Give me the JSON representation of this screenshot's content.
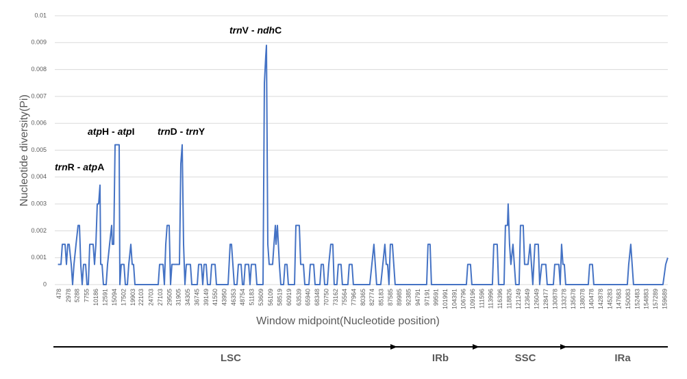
{
  "chart_data": {
    "type": "line",
    "color": "#4472c4",
    "grid": true,
    "ylabel": "Nucleotide diversity(Pi)",
    "xlabel": "Window midpoint(Nucleotide position)",
    "ylim": [
      0,
      0.01
    ],
    "yticks": [
      0,
      0.001,
      0.002,
      0.003,
      0.004,
      0.005,
      0.006,
      0.007,
      0.008,
      0.009,
      0.01
    ],
    "xlim": [
      -720,
      160400
    ],
    "xticks": [
      478,
      2978,
      5288,
      7755,
      10186,
      12591,
      15094,
      17502,
      19903,
      22103,
      24703,
      27103,
      29505,
      31905,
      34305,
      36745,
      39149,
      41550,
      43950,
      46353,
      48754,
      51183,
      53609,
      56109,
      58519,
      60919,
      63539,
      65940,
      68348,
      70750,
      73162,
      75564,
      77964,
      80365,
      82774,
      85183,
      87585,
      89985,
      92385,
      94791,
      97191,
      99591,
      101991,
      104391,
      106796,
      109196,
      111596,
      113996,
      116396,
      118826,
      121249,
      123649,
      126049,
      128477,
      130878,
      133278,
      135678,
      138078,
      140478,
      142878,
      145283,
      147683,
      150083,
      152483,
      154883,
      157289,
      159689
    ],
    "x": [
      100,
      900,
      1260,
      1980,
      2340,
      2700,
      3060,
      3600,
      3960,
      4320,
      4860,
      5400,
      5760,
      6120,
      6480,
      6840,
      7380,
      7740,
      8100,
      8460,
      9360,
      9720,
      10080,
      10440,
      10800,
      11160,
      11340,
      11700,
      12060,
      12780,
      13140,
      13680,
      14220,
      14400,
      14760,
      15120,
      16200,
      16380,
      16740,
      17460,
      17820,
      18360,
      18720,
      19260,
      19620,
      19980,
      20340,
      26460,
      26820,
      27720,
      28080,
      28440,
      28800,
      29340,
      29700,
      30060,
      32040,
      32400,
      32760,
      33120,
      33480,
      33840,
      34920,
      35280,
      36720,
      37080,
      37800,
      38160,
      38520,
      39060,
      39420,
      40140,
      40500,
      41400,
      41760,
      44820,
      45360,
      45720,
      46080,
      46440,
      47160,
      47520,
      48240,
      48600,
      48960,
      49320,
      50220,
      50580,
      50940,
      52020,
      52380,
      54000,
      54360,
      54720,
      54900,
      55260,
      55620,
      56520,
      56880,
      57240,
      57420,
      57780,
      58320,
      58680,
      59400,
      59760,
      60300,
      60660,
      62280,
      62640,
      63540,
      63900,
      64620,
      64980,
      66060,
      66420,
      67320,
      67680,
      68940,
      69300,
      69840,
      70200,
      70920,
      71280,
      71820,
      72360,
      72720,
      73440,
      73800,
      74520,
      74880,
      76320,
      76680,
      77400,
      77760,
      82080,
      82620,
      83160,
      83520,
      83880,
      84960,
      85500,
      86040,
      86400,
      86760,
      87120,
      87480,
      88020,
      88380,
      88740,
      97020,
      97380,
      97920,
      98280,
      107460,
      107820,
      108540,
      108900,
      114300,
      114660,
      115560,
      115920,
      117360,
      117720,
      118260,
      118440,
      118800,
      119160,
      119700,
      120060,
      120420,
      121320,
      121680,
      122400,
      122760,
      123660,
      124200,
      124560,
      124920,
      125460,
      126360,
      126720,
      127260,
      128340,
      128700,
      130320,
      130680,
      131400,
      131760,
      132120,
      132480,
      132840,
      133200,
      133560,
      139500,
      139860,
      140580,
      140940,
      149760,
      150120,
      150660,
      151020,
      151380,
      159120,
      159840,
      160380
    ],
    "values": [
      0.00075,
      0.00075,
      0.0015,
      0.0015,
      0.00075,
      0.0015,
      0.0015,
      0.00075,
      0,
      0.00075,
      0.0015,
      0.0022,
      0.0022,
      0.0007,
      0,
      0.00075,
      0.00075,
      0,
      0,
      0.0015,
      0.0015,
      0.00075,
      0.0015,
      0.003,
      0.003,
      0.0037,
      0.00075,
      0.00075,
      0,
      0,
      0.00075,
      0.0015,
      0.0022,
      0.0015,
      0.0015,
      0.0052,
      0.0052,
      0,
      0.00075,
      0.00075,
      0,
      0,
      0.00075,
      0.0015,
      0.00075,
      0.00075,
      0,
      0,
      0.00075,
      0.00075,
      0,
      0.0015,
      0.0022,
      0.0022,
      0,
      0.00075,
      0.00075,
      0.0045,
      0.0052,
      0.0015,
      0,
      0.00075,
      0.00075,
      0,
      0,
      0.00075,
      0.00075,
      0,
      0.00075,
      0.00075,
      0,
      0,
      0.00075,
      0.00075,
      0,
      0,
      0.0015,
      0.0015,
      0.00075,
      0,
      0,
      0.00075,
      0.00075,
      0,
      0,
      0.00075,
      0.00075,
      0,
      0.00075,
      0.00075,
      0,
      0,
      0.0075,
      0.0085,
      0.0089,
      0.0015,
      0.00075,
      0.00075,
      0.0015,
      0.0022,
      0.0015,
      0.0022,
      0.0007,
      0,
      0,
      0.00075,
      0.00075,
      0,
      0,
      0.0022,
      0.0022,
      0.00075,
      0.00075,
      0,
      0,
      0.00075,
      0.00075,
      0,
      0,
      0.00075,
      0.00075,
      0,
      0,
      0.00075,
      0.0015,
      0.0015,
      0,
      0,
      0.00075,
      0.00075,
      0,
      0,
      0.00075,
      0.00075,
      0,
      0,
      0.00075,
      0.0015,
      0.00075,
      0,
      0,
      0.00075,
      0.0015,
      0.00075,
      0.00075,
      0,
      0.0015,
      0.0015,
      0.00075,
      0,
      0,
      0.0015,
      0.0015,
      0,
      0,
      0.00075,
      0.00075,
      0,
      0,
      0.0015,
      0.0015,
      0,
      0,
      0.0022,
      0.0022,
      0.003,
      0.0015,
      0.00075,
      0.0015,
      0.00075,
      0,
      0,
      0.0022,
      0.0022,
      0.00075,
      0.00075,
      0.0015,
      0.00075,
      0,
      0.0015,
      0.0015,
      0,
      0.00075,
      0.00075,
      0,
      0,
      0.00075,
      0.00075,
      0.00075,
      0,
      0.0015,
      0.00075,
      0.00075,
      0,
      0,
      0.00075,
      0.00075,
      0,
      0,
      0.00075,
      0.0015,
      0.00075,
      0,
      0,
      0.00075,
      0.001
    ],
    "annotations": [
      {
        "parts": [
          "trn",
          "R - ",
          "atp",
          "A"
        ]
      },
      {
        "parts": [
          "atp",
          "H - ",
          "atp",
          "I"
        ]
      },
      {
        "parts": [
          "trn",
          "D - ",
          "trn",
          "Y"
        ]
      },
      {
        "parts": [
          "trn",
          "V - ",
          "ndh",
          "C"
        ]
      }
    ],
    "regions": [
      "LSC",
      "IRb",
      "SSC",
      "IRa"
    ]
  }
}
